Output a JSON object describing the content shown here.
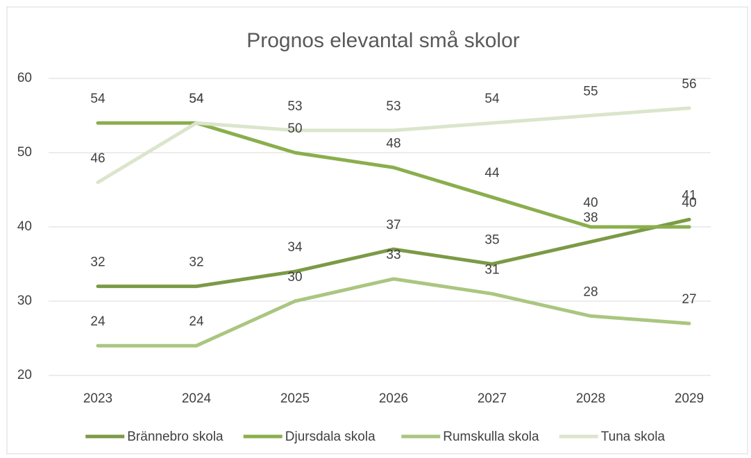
{
  "chart_data": {
    "type": "line",
    "title": "Prognos elevantal små skolor",
    "categories": [
      "2023",
      "2024",
      "2025",
      "2026",
      "2027",
      "2028",
      "2029"
    ],
    "series": [
      {
        "name": "Brännebro skola",
        "color": "#7b9a45",
        "values": [
          32,
          32,
          34,
          37,
          35,
          38,
          41
        ]
      },
      {
        "name": "Djursdala skola",
        "color": "#8aae4d",
        "values": [
          54,
          54,
          50,
          48,
          44,
          40,
          40
        ]
      },
      {
        "name": "Rumskulla skola",
        "color": "#aac680",
        "values": [
          24,
          24,
          30,
          33,
          31,
          28,
          27
        ]
      },
      {
        "name": "Tuna skola",
        "color": "#dbe5cc",
        "values": [
          46,
          54,
          53,
          53,
          54,
          55,
          56
        ]
      }
    ],
    "ylim": [
      20,
      60
    ],
    "yticks": [
      20,
      30,
      40,
      50,
      60
    ],
    "grid": true,
    "legend": "bottom"
  }
}
